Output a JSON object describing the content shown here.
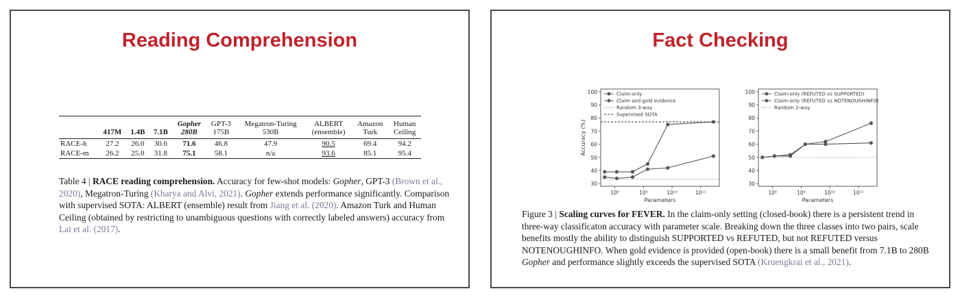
{
  "left": {
    "title": "Reading Comprehension",
    "table": {
      "columns": [
        {
          "line1": "",
          "line2": "",
          "style": ""
        },
        {
          "line1": "",
          "line2": "417M",
          "style": "bold"
        },
        {
          "line1": "",
          "line2": "1.4B",
          "style": "bold"
        },
        {
          "line1": "",
          "line2": "7.1B",
          "style": "bold"
        },
        {
          "line1": "Gopher",
          "line2": "280B",
          "style": "bolditalic"
        },
        {
          "line1": "GPT-3",
          "line2": "175B",
          "style": ""
        },
        {
          "line1": "Megatron-Turing",
          "line2": "530B",
          "style": ""
        },
        {
          "line1": "ALBERT",
          "line2": "(ensemble)",
          "style": ""
        },
        {
          "line1": "Amazon",
          "line2": "Turk",
          "style": ""
        },
        {
          "line1": "Human",
          "line2": "Ceiling",
          "style": ""
        }
      ],
      "rows": [
        {
          "label": "RACE-h",
          "cells": [
            "27.2",
            "26.0",
            "30.6",
            "71.6",
            "46.8",
            "47.9",
            "90.5",
            "69.4",
            "94.2"
          ]
        },
        {
          "label": "RACE-m",
          "cells": [
            "26.2",
            "25.0",
            "31.8",
            "75.1",
            "58.1",
            "n/a",
            "93.6",
            "85.1",
            "95.4"
          ]
        }
      ]
    },
    "caption": {
      "prefix": "Table 4 | ",
      "bold": "RACE reading comprehension.",
      "t1": " Accuracy for few-shot models: ",
      "gopher1": "Gopher",
      "t2": ", GPT-3 ",
      "cite1": "(Brown et al., 2020)",
      "t3": ", Megatron-Turing ",
      "cite2": "(Kharya and Alvi, 2021)",
      "t4": ". ",
      "gopher2": "Gopher",
      "t5": " extends performance significantly. Comparison with supervised SOTA: ALBERT (ensemble) result from ",
      "cite3": "Jiang et al. (2020)",
      "t6": ". Amazon Turk and Human Ceiling (obtained by restricting to unambiguous questions with correctly labeled answers) accuracy from ",
      "cite4": "Lai et al. (2017)",
      "t7": "."
    }
  },
  "right": {
    "title": "Fact Checking",
    "caption": {
      "prefix": "Figure 3 | ",
      "bold": "Scaling curves for FEVER.",
      "t1": " In the claim-only setting (closed-book) there is a persistent trend in three-way classificaton accuracy with parameter scale. Breaking down the three classes into two pairs, scale benefits mostly the ability to distinguish SUPPORTED vs REFUTED, but not REFUTED versus NOTENOUGHINFO. When gold evidence is provided (open-book) there is a small benefit from 7.1B to 280B ",
      "gopher": "Gopher",
      "t2": " and performance slightly exceeds the supervised SOTA ",
      "cite": "(Kruengkrai et al., 2021)",
      "t3": "."
    }
  },
  "chart_data": [
    {
      "type": "line",
      "xlabel": "Parameters",
      "ylabel": "Accuracy (%)",
      "xscale": "log",
      "xticks": [
        "10⁸",
        "10⁹",
        "10¹⁰",
        "10¹¹"
      ],
      "yticks": [
        30,
        40,
        50,
        60,
        70,
        80,
        90,
        100
      ],
      "ylim": [
        28,
        102
      ],
      "legend_position": "top-left",
      "series": [
        {
          "name": "Claim-only",
          "x": [
            44000000.0,
            117000000.0,
            417000000.0,
            1400000000.0,
            7100000000.0,
            280000000000.0
          ],
          "y": [
            35,
            34,
            35,
            41,
            42,
            51
          ],
          "color": "#555555",
          "marker": true
        },
        {
          "name": "Claim and gold evidence",
          "x": [
            44000000.0,
            117000000.0,
            417000000.0,
            1400000000.0,
            7100000000.0,
            280000000000.0
          ],
          "y": [
            39,
            39,
            39,
            45,
            75,
            77
          ],
          "color": "#555555",
          "marker": true
        },
        {
          "name": "Random 3-way",
          "hline": 33.3,
          "color": "#9a9a9a",
          "style": "dotted"
        },
        {
          "name": "Supervised SOTA",
          "hline": 77,
          "color": "#333333",
          "style": "dashed"
        }
      ]
    },
    {
      "type": "line",
      "xlabel": "Parameters",
      "ylabel": "",
      "xscale": "log",
      "xticks": [
        "10⁸",
        "10⁹",
        "10¹⁰",
        "10¹¹"
      ],
      "yticks": [
        30,
        40,
        50,
        60,
        70,
        80,
        90,
        100
      ],
      "ylim": [
        28,
        102
      ],
      "legend_position": "top-left",
      "series": [
        {
          "name": "Claim-only (REFUTED vs SUPPORTED)",
          "x": [
            44000000.0,
            117000000.0,
            417000000.0,
            1400000000.0,
            7100000000.0,
            280000000000.0
          ],
          "y": [
            50,
            51,
            52,
            60,
            62,
            76
          ],
          "color": "#555555",
          "marker": true
        },
        {
          "name": "Claim-only (REFUTED vs NOTENOUGHINFO)",
          "x": [
            44000000.0,
            117000000.0,
            417000000.0,
            1400000000.0,
            7100000000.0,
            280000000000.0
          ],
          "y": [
            50,
            51,
            51,
            60,
            60,
            61
          ],
          "color": "#555555",
          "marker": true
        },
        {
          "name": "Random 2-way",
          "hline": 50,
          "color": "#9a9a9a",
          "style": "dotted"
        }
      ]
    }
  ]
}
